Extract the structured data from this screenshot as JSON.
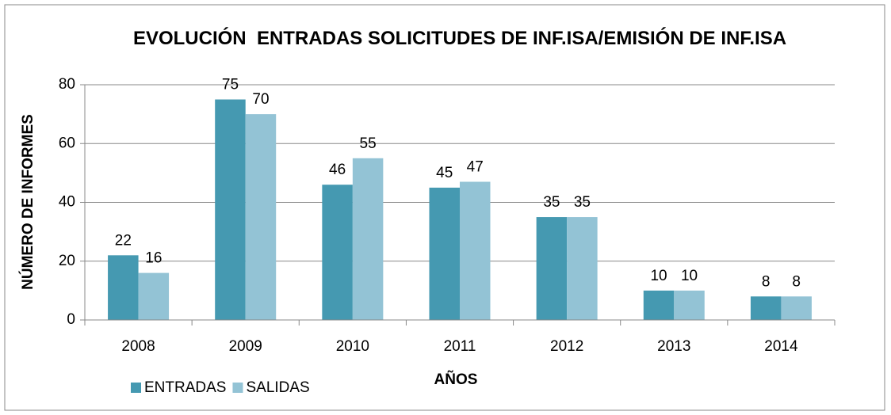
{
  "chart_data": {
    "type": "bar",
    "title": "EVOLUCIÓN  ENTRADAS SOLICITUDES DE INF.ISA/EMISIÓN DE INF.ISA",
    "x_label": "AÑOS",
    "y_label": "NÚMERO DE INFORMES",
    "categories": [
      "2008",
      "2009",
      "2010",
      "2011",
      "2012",
      "2013",
      "2014"
    ],
    "series": [
      {
        "name": "ENTRADAS",
        "color": "#4599b1",
        "values": [
          22,
          75,
          46,
          45,
          35,
          10,
          8
        ]
      },
      {
        "name": "SALIDAS",
        "color": "#93c3d5",
        "values": [
          16,
          70,
          55,
          47,
          35,
          10,
          8
        ]
      }
    ],
    "ylim": [
      0,
      80
    ],
    "yticks": [
      0,
      20,
      40,
      60,
      80
    ],
    "grid": true,
    "legend": "bottom-left"
  }
}
